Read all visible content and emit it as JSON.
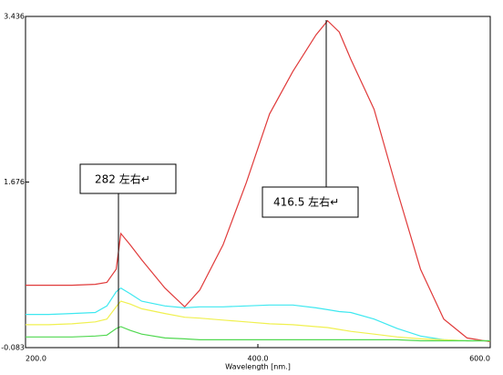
{
  "chart_data": {
    "type": "line",
    "x_label": "Wavelength [nm.]",
    "x": [
      200,
      220,
      240,
      260,
      270,
      278,
      282,
      290,
      300,
      320,
      337,
      350,
      370,
      390,
      410,
      430,
      450,
      460,
      470,
      480,
      500,
      520,
      540,
      560,
      580,
      600
    ],
    "series": [
      {
        "color": "#e03a3a",
        "values": [
          0.58,
          0.58,
          0.58,
          0.59,
          0.61,
          0.75,
          1.13,
          1.01,
          0.85,
          0.55,
          0.35,
          0.53,
          1.01,
          1.67,
          2.4,
          2.85,
          3.24,
          3.39,
          3.27,
          2.98,
          2.45,
          1.58,
          0.75,
          0.22,
          0.02,
          -0.02
        ]
      },
      {
        "color": "#3ee8f0",
        "values": [
          0.27,
          0.27,
          0.28,
          0.29,
          0.36,
          0.51,
          0.55,
          0.49,
          0.41,
          0.36,
          0.34,
          0.35,
          0.35,
          0.36,
          0.37,
          0.37,
          0.34,
          0.32,
          0.3,
          0.29,
          0.22,
          0.12,
          0.04,
          0.0,
          -0.01,
          -0.01
        ]
      },
      {
        "color": "#f0f050",
        "values": [
          0.16,
          0.16,
          0.17,
          0.19,
          0.22,
          0.35,
          0.41,
          0.38,
          0.33,
          0.28,
          0.24,
          0.23,
          0.21,
          0.19,
          0.17,
          0.16,
          0.14,
          0.13,
          0.11,
          0.09,
          0.06,
          0.03,
          0.01,
          0.0,
          -0.01,
          -0.01
        ]
      },
      {
        "color": "#50d850",
        "values": [
          0.03,
          0.03,
          0.03,
          0.04,
          0.05,
          0.12,
          0.14,
          0.1,
          0.06,
          0.02,
          0.01,
          0.0,
          0.0,
          0.0,
          0.0,
          0.0,
          0.0,
          0.0,
          0.0,
          0.0,
          0.0,
          0.0,
          -0.01,
          -0.01,
          -0.01,
          -0.01
        ]
      }
    ],
    "xlim": [
      200,
      600
    ],
    "xticks": [
      {
        "value": 200,
        "label": "200.0"
      },
      {
        "value": 400,
        "label": "400.0"
      },
      {
        "value": 600,
        "label": "600.0"
      }
    ],
    "ylim": [
      -0.083,
      3.436
    ],
    "yticks": [
      -0.083,
      1.676,
      3.436
    ],
    "annotations": [
      "282 左右↵",
      "416.5 左右↵"
    ]
  }
}
